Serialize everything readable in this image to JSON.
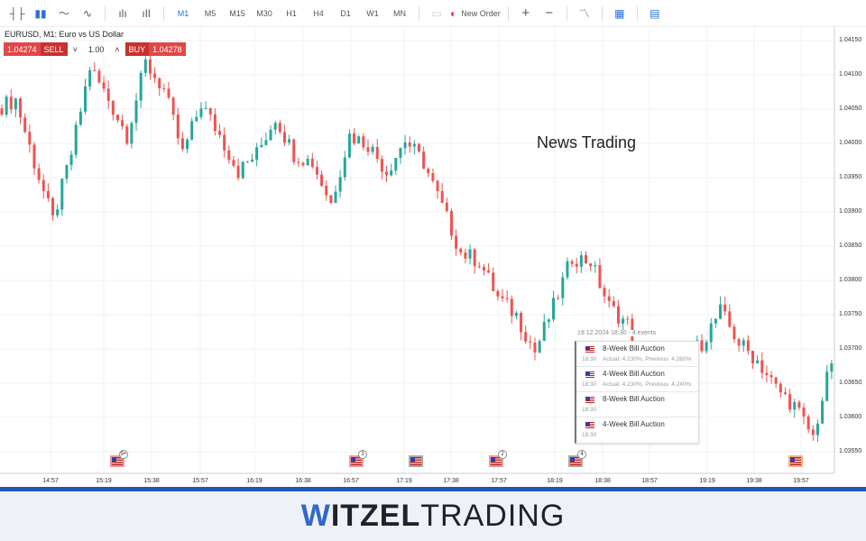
{
  "toolbar": {
    "chart_icons": [
      "bar-chart-icon",
      "candlestick-icon",
      "line-chart-icon",
      "area-chart-icon",
      "volume-icon",
      "indicator-icon"
    ],
    "timeframes": [
      "M1",
      "M5",
      "M15",
      "M30",
      "H1",
      "H4",
      "D1",
      "W1",
      "MN"
    ],
    "active_timeframe": "M1",
    "new_order": "New Order",
    "right_icons": [
      "zoom-in-icon",
      "zoom-out-icon",
      "indicators-icon",
      "calendar-icon",
      "news-icon"
    ]
  },
  "symbol": "EURUSD, M1: Euro vs US Dollar",
  "trade": {
    "bid": "1.04274",
    "sell": "SELL",
    "volume": "1.00",
    "buy": "BUY",
    "ask": "1.04278"
  },
  "annotation": "News Trading",
  "colors": {
    "up": "#26a69a",
    "down": "#ef5350",
    "accent": "#2a6fdb",
    "brand": "#1f57b0"
  },
  "popup": {
    "header": "19.12.2024 18:30 - 4 events",
    "events": [
      {
        "name": "8-Week Bill Auction",
        "time": "18:30",
        "detail": "Actual: 4.230%, Previous: 4.260%"
      },
      {
        "name": "4-Week Bill Auction",
        "time": "18:30",
        "detail": "Actual: 4.230%, Previous: 4.240%"
      },
      {
        "name": "8-Week Bill Auction",
        "time": "18:30",
        "detail": ""
      },
      {
        "name": "4-Week Bill Auction",
        "time": "18:30",
        "detail": ""
      }
    ]
  },
  "event_markers": [
    "9+",
    "3",
    "",
    "2",
    "4",
    ""
  ],
  "chart_data": {
    "type": "candlestick",
    "symbol": "EURUSD",
    "timeframe": "M1",
    "x_ticks": [
      "14:57",
      "15:19",
      "15:38",
      "15:57",
      "16:19",
      "16:38",
      "16:57",
      "17:19",
      "17:38",
      "17:57",
      "18:19",
      "18:38",
      "18:57",
      "19:19",
      "19:38",
      "19:57"
    ],
    "y_ticks": [
      "1.04150",
      "1.04100",
      "1.04050",
      "1.04000",
      "1.03950",
      "1.03900",
      "1.03850",
      "1.03800",
      "1.03750",
      "1.03700",
      "1.03650",
      "1.03600",
      "1.03550"
    ],
    "ylim": [
      1.0353,
      1.0416
    ],
    "close_path": [
      1.04051,
      1.04064,
      1.03972,
      1.03887,
      1.03985,
      1.04111,
      1.04064,
      1.04012,
      1.04117,
      1.04078,
      1.03985,
      1.04058,
      1.04012,
      1.03959,
      1.03985,
      1.04038,
      1.03985,
      1.03972,
      1.03913,
      1.04012,
      1.03999,
      1.03959,
      1.04005,
      1.03972,
      1.03907,
      1.03841,
      1.03828,
      1.03775,
      1.03749,
      1.03696,
      1.03762,
      1.03834,
      1.03828,
      1.03762,
      1.03736,
      1.0363,
      1.03564,
      1.03683,
      1.03709,
      1.03755,
      1.03709,
      1.03683,
      1.03643,
      1.03617,
      1.03571,
      1.03683
    ],
    "grid": true
  },
  "footer": {
    "logo_w": "W",
    "logo_bold": "ITZEL",
    "logo_light": "TRADING"
  }
}
